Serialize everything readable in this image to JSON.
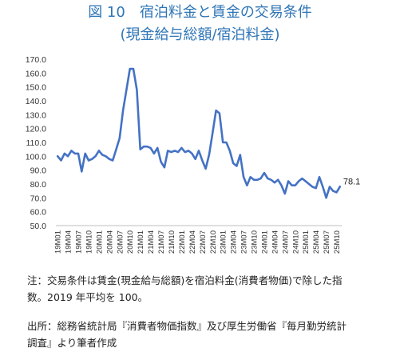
{
  "title": {
    "line1": "図 10　宿泊料金と賃金の交易条件",
    "line2": "(現金給与総額/宿泊料金)"
  },
  "notes": {
    "note_line1": "注：交易条件は賃金(現金給与総額)を宿泊料金(消費者物価)で除した指",
    "note_line2": "数。2019 年平均を 100。",
    "source_line1": "出所：総務省統計局『消費者物価指数』及び厚生労働省『毎月勤労統計",
    "source_line2": "調査』より筆者作成"
  },
  "chart_data": {
    "type": "line",
    "title": "",
    "xlabel": "",
    "ylabel": "",
    "ylim": [
      50,
      170
    ],
    "yticks": [
      "170.0",
      "160.0",
      "150.0",
      "140.0",
      "130.0",
      "120.0",
      "110.0",
      "100.0",
      "90.0",
      "80.0",
      "70.0",
      "60.0",
      "50.0"
    ],
    "grid": false,
    "line_color": "#4472c4",
    "x": [
      "19M01",
      "19M02",
      "19M03",
      "19M04",
      "19M05",
      "19M06",
      "19M07",
      "19M08",
      "19M09",
      "19M10",
      "19M11",
      "19M12",
      "20M01",
      "20M02",
      "20M03",
      "20M04",
      "20M05",
      "20M06",
      "20M07",
      "20M08",
      "20M09",
      "20M10",
      "20M11",
      "20M12",
      "21M01",
      "21M02",
      "21M03",
      "21M04",
      "21M05",
      "21M06",
      "21M07",
      "21M08",
      "21M09",
      "21M10",
      "21M11",
      "21M12",
      "22M01",
      "22M02",
      "22M03",
      "22M04",
      "22M05",
      "22M06",
      "22M07",
      "22M08",
      "22M09",
      "22M10",
      "22M11",
      "22M12",
      "23M01",
      "23M02",
      "23M03",
      "23M04",
      "23M05",
      "23M06",
      "23M07",
      "23M08",
      "23M09",
      "23M10",
      "23M11",
      "23M12",
      "24M01",
      "24M02",
      "24M03",
      "24M04",
      "24M05",
      "24M06",
      "24M07",
      "24M08",
      "24M09",
      "24M10",
      "24M11",
      "24M12",
      "25M01",
      "25M02",
      "25M03",
      "25M04",
      "25M05",
      "25M06",
      "25M07",
      "25M08",
      "25M09",
      "25M10",
      "25M11"
    ],
    "x_tick_labels": [
      "19M01",
      "19M04",
      "19M07",
      "19M10",
      "20M01",
      "20M04",
      "20M07",
      "20M10",
      "21M01",
      "21M04",
      "21M07",
      "21M10",
      "22M01",
      "22M04",
      "22M07",
      "22M10",
      "23M01",
      "23M04",
      "23M07",
      "23M10",
      "24M01",
      "24M04",
      "24M07",
      "24M10",
      "25M01",
      "25M04",
      "25M07",
      "25M10"
    ],
    "series": [
      {
        "values": [
          100,
          97,
          102,
          100,
          104,
          102,
          102,
          89,
          102,
          97,
          98,
          100,
          104,
          101,
          100,
          98,
          97,
          105,
          113,
          133,
          148,
          163,
          163,
          148,
          105,
          107,
          107,
          106,
          102,
          106,
          96,
          92,
          104,
          103,
          104,
          103,
          106,
          103,
          104,
          102,
          98,
          104,
          97,
          91,
          101,
          117,
          133,
          131,
          110,
          110,
          104,
          95,
          93,
          101,
          85,
          79,
          85,
          83,
          83,
          84,
          88,
          84,
          83,
          81,
          83,
          79,
          73,
          82,
          79,
          79,
          82,
          84,
          82,
          80,
          78,
          77,
          85,
          78,
          70,
          78,
          75,
          74,
          78.1
        ]
      }
    ],
    "end_label": "78.1"
  }
}
